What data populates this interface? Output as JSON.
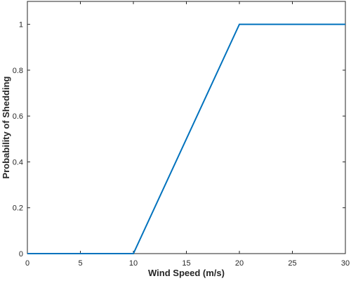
{
  "chart_data": {
    "type": "line",
    "title": "",
    "xlabel": "Wind Speed (m/s)",
    "ylabel": "Probability of Shedding",
    "xlim": [
      0,
      30
    ],
    "ylim": [
      0,
      1.1
    ],
    "grid": false,
    "legend": "none",
    "x_ticks": [
      0,
      5,
      10,
      15,
      20,
      25,
      30
    ],
    "y_ticks": [
      0,
      0.2,
      0.4,
      0.6,
      0.8,
      1
    ],
    "series": [
      {
        "color": "#0072BD",
        "x": [
          0,
          10,
          20,
          30
        ],
        "y": [
          0,
          0,
          1,
          1
        ]
      }
    ],
    "colors": {
      "axis": "#262626",
      "line": "#0072BD"
    }
  }
}
